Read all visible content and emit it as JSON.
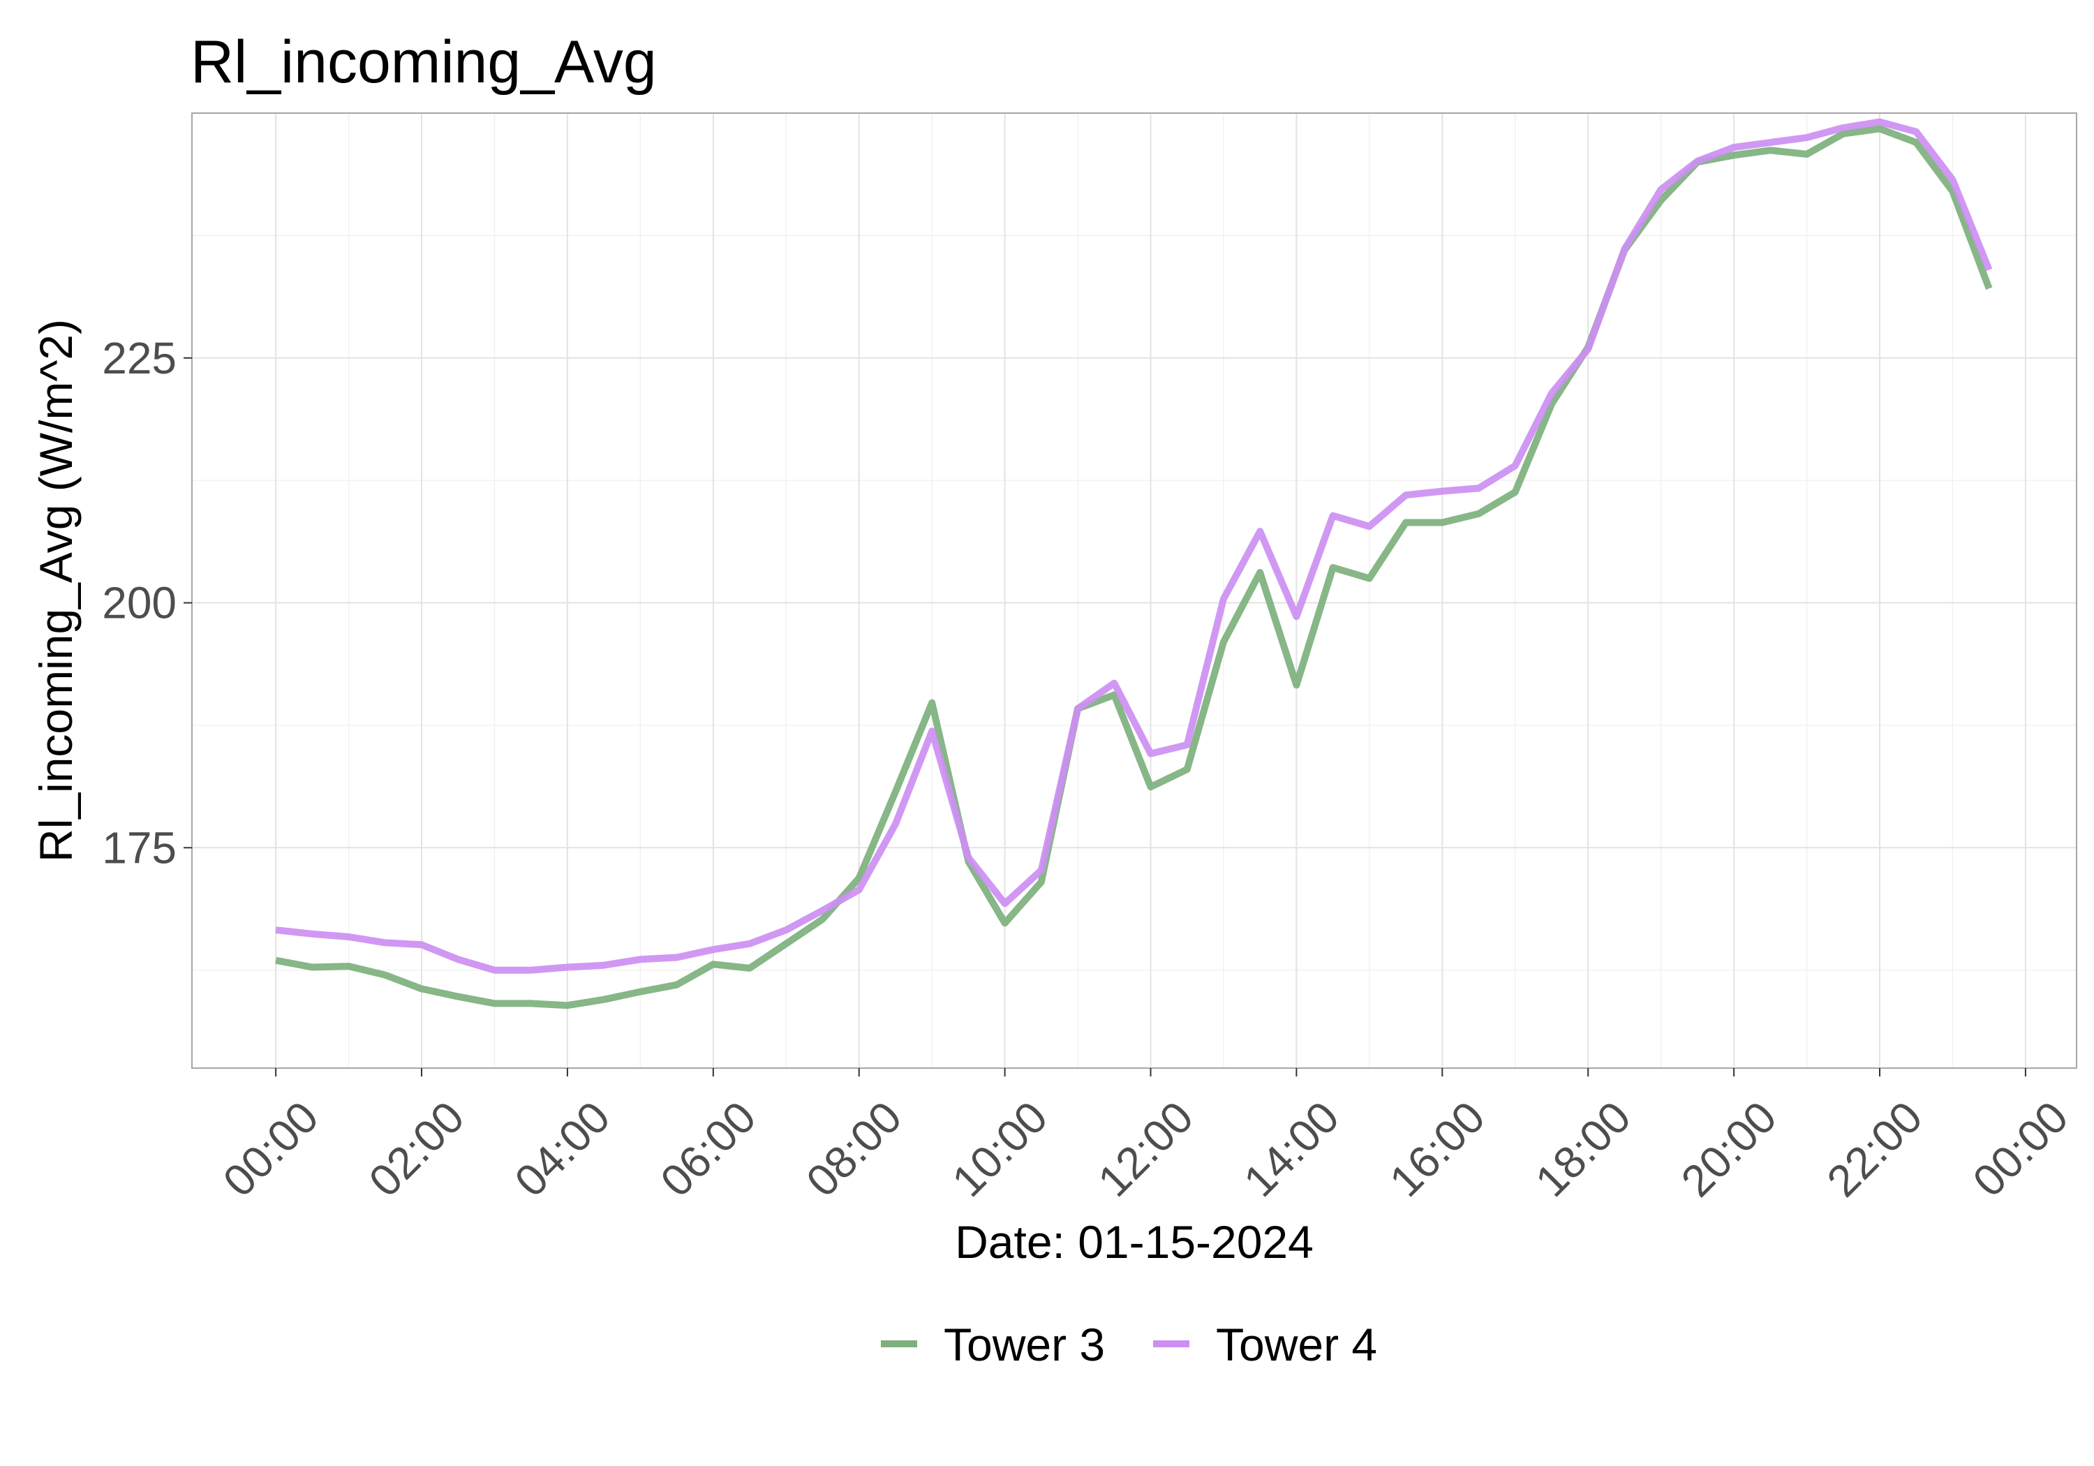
{
  "chart_data": {
    "type": "line",
    "title": "Rl_incoming_Avg",
    "xlabel": "Date: 01-15-2024",
    "ylabel": "Rl_incoming_Avg (W/m^2)",
    "ylim": [
      152.5,
      250
    ],
    "xlim": [
      -1.15,
      24.7
    ],
    "y_ticks": [
      175,
      200,
      225
    ],
    "x_tick_labels": [
      "00:00",
      "02:00",
      "04:00",
      "06:00",
      "08:00",
      "10:00",
      "12:00",
      "14:00",
      "16:00",
      "18:00",
      "20:00",
      "22:00",
      "00:00"
    ],
    "x_tick_hours": [
      0,
      2,
      4,
      6,
      8,
      10,
      12,
      14,
      16,
      18,
      20,
      22,
      24
    ],
    "grid": true,
    "legend_position": "bottom",
    "x": [
      0,
      0.5,
      1,
      1.5,
      2,
      2.5,
      3,
      3.5,
      4,
      4.5,
      5,
      5.5,
      6,
      6.5,
      7,
      7.5,
      8,
      8.5,
      9,
      9.5,
      10,
      10.5,
      11,
      11.5,
      12,
      12.5,
      13,
      13.5,
      14,
      14.5,
      15,
      15.5,
      16,
      16.5,
      17,
      17.5,
      18,
      18.5,
      19,
      19.5,
      20,
      20.5,
      21,
      21.5,
      22,
      22.5,
      23,
      23.5
    ],
    "series": [
      {
        "name": "Tower 3",
        "color": "#7DB07D",
        "values": [
          163.5,
          162.8,
          162.9,
          162.0,
          160.6,
          159.8,
          159.1,
          159.1,
          158.9,
          159.5,
          160.3,
          161.0,
          163.1,
          162.7,
          165.2,
          167.7,
          171.9,
          180.7,
          189.8,
          173.6,
          167.3,
          171.5,
          189.2,
          190.6,
          181.2,
          183.0,
          196.0,
          203.1,
          191.6,
          203.6,
          202.5,
          208.2,
          208.2,
          209.1,
          211.3,
          220.3,
          226.1,
          236.0,
          241.1,
          245.0,
          245.7,
          246.2,
          245.8,
          247.9,
          248.4,
          247.0,
          242.0,
          232.1
        ]
      },
      {
        "name": "Tower 4",
        "color": "#CC8FF2",
        "values": [
          166.6,
          166.2,
          165.9,
          165.3,
          165.1,
          163.6,
          162.5,
          162.5,
          162.8,
          163.0,
          163.6,
          163.8,
          164.6,
          165.2,
          166.6,
          168.6,
          170.7,
          177.4,
          186.9,
          174.0,
          169.3,
          172.7,
          189.2,
          191.8,
          184.6,
          185.5,
          200.4,
          207.3,
          198.6,
          208.9,
          207.8,
          211.0,
          211.4,
          211.7,
          214.0,
          221.4,
          225.9,
          236.1,
          242.2,
          245.1,
          246.5,
          247.0,
          247.5,
          248.5,
          249.1,
          248.1,
          243.2,
          234.0
        ]
      }
    ]
  }
}
